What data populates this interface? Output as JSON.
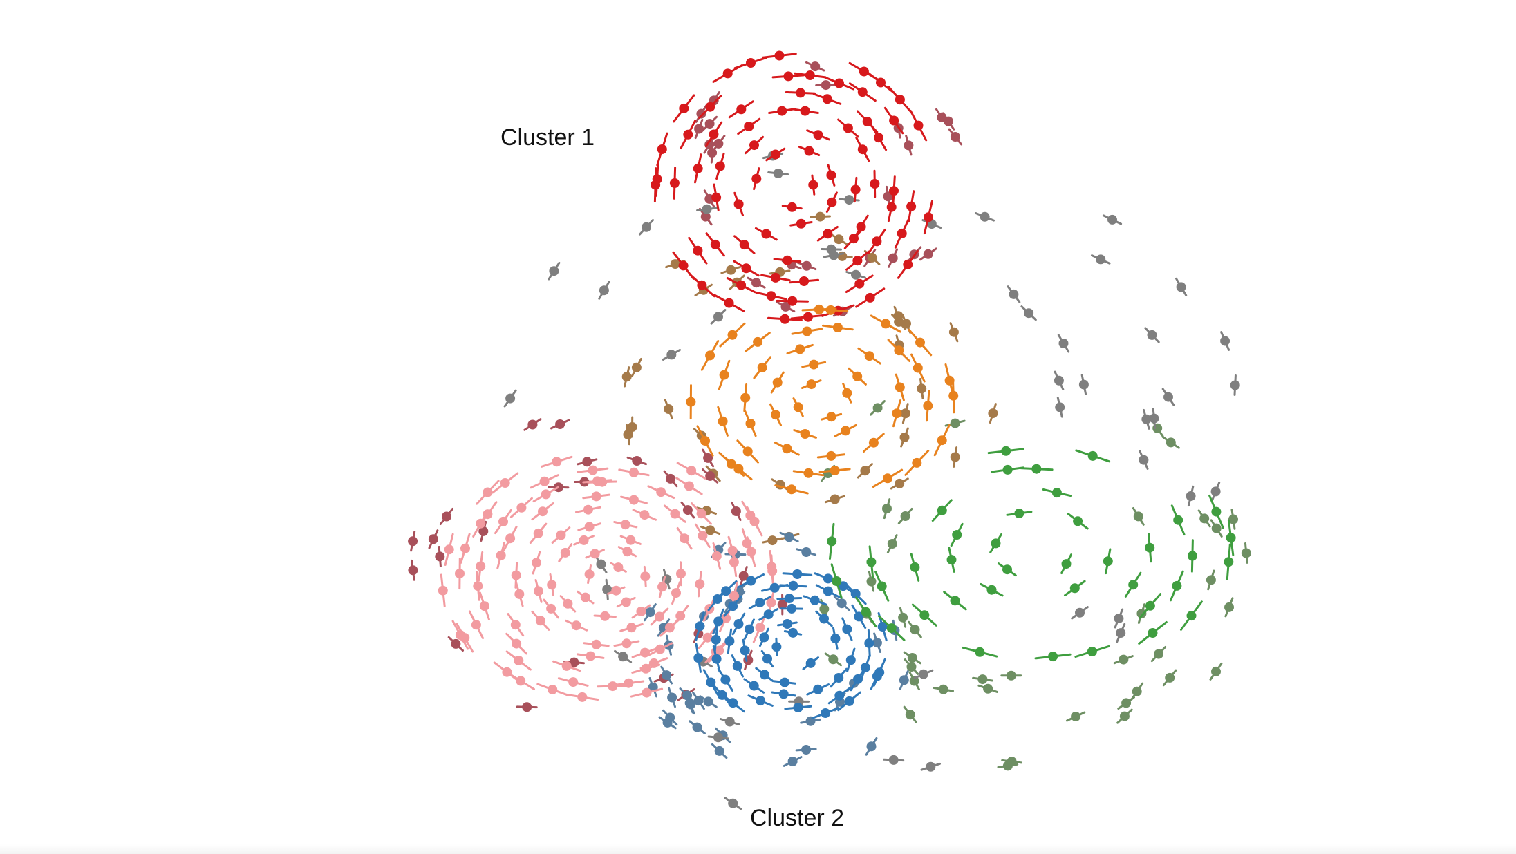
{
  "labels": {
    "cluster_1": "Cluster 1",
    "cluster_2": "Cluster 2"
  },
  "colors": {
    "red": "#d7191c",
    "orange": "#e8821e",
    "pink": "#f29ba0",
    "blue": "#2f78b8",
    "green": "#3f9e3f",
    "gray": "#7f7f7f",
    "mauve": "#a8505a",
    "tan": "#a57a4a",
    "slate": "#5a7fa0",
    "sage": "#6e8f63"
  }
}
